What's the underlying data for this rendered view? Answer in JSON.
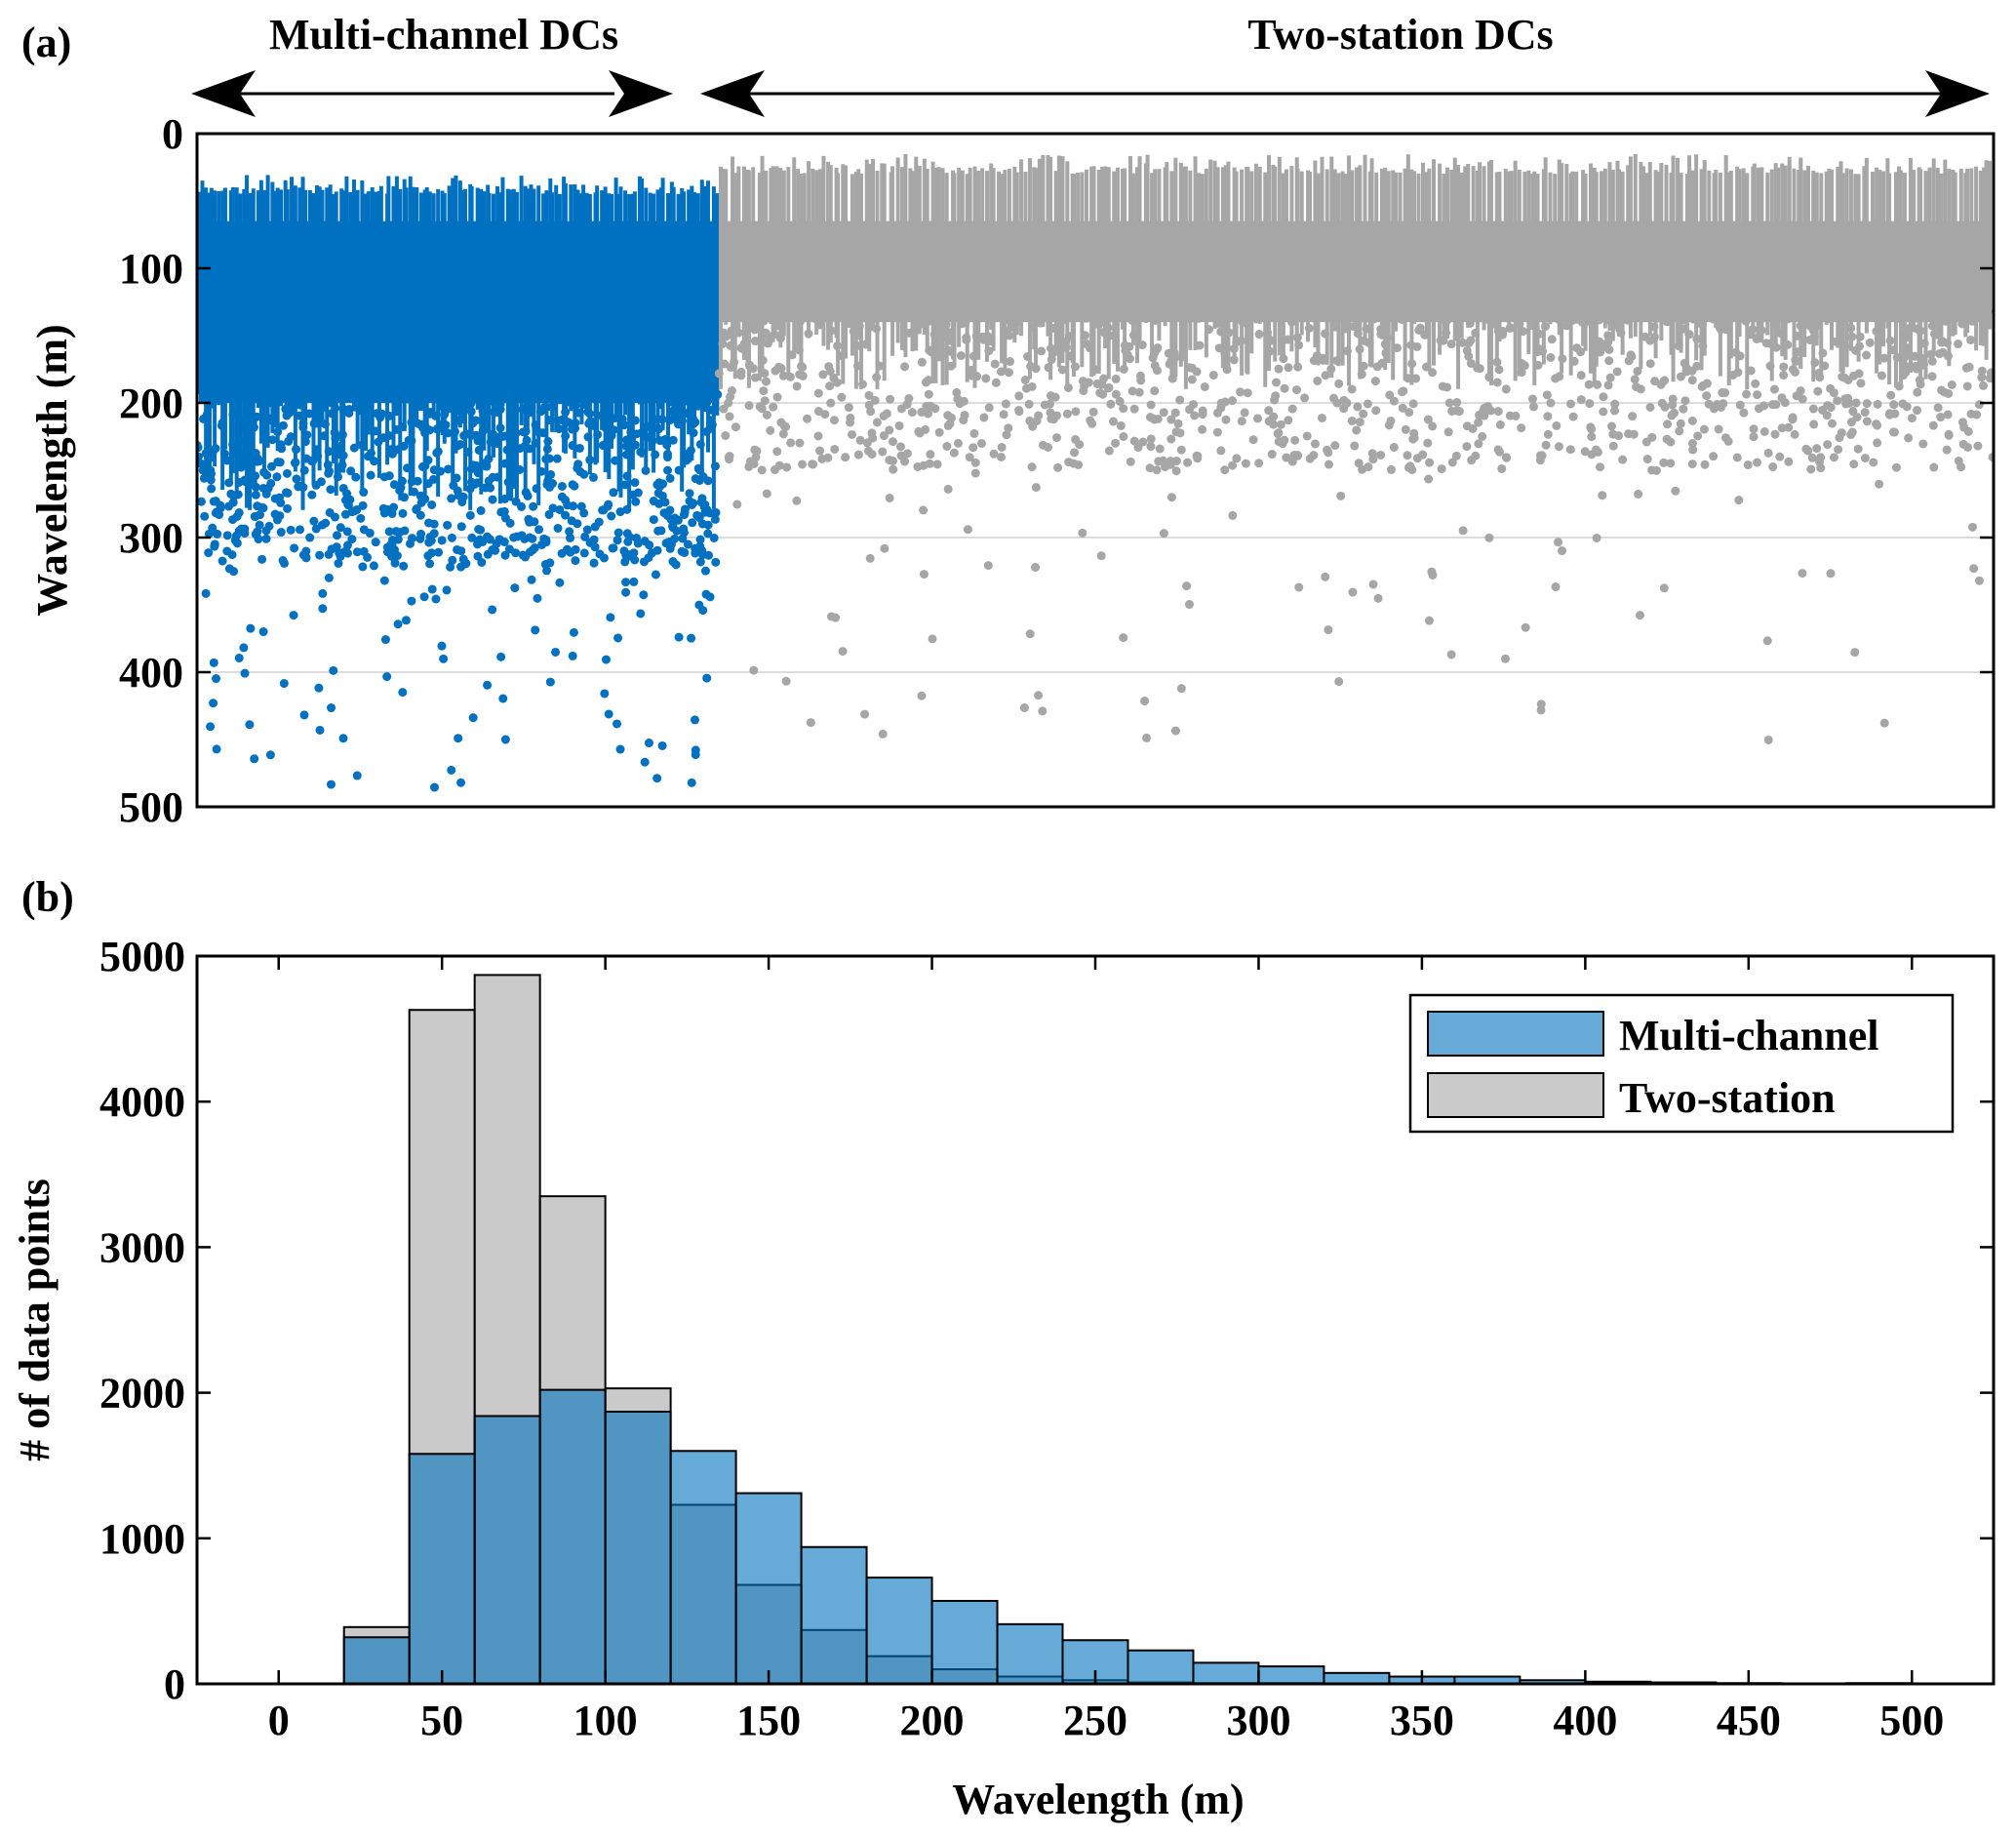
{
  "chart_data": [
    {
      "panel_label": "(a)",
      "type": "scatter",
      "title": "",
      "xlabel": "",
      "ylabel": "Wavelength (m)",
      "ylim": [
        0,
        500
      ],
      "y_reversed": true,
      "y_ticks": [
        0,
        100,
        200,
        300,
        400,
        500
      ],
      "y_grid": true,
      "x_tick_labels_visible": false,
      "annotations": [
        {
          "label": "Multi-channel DCs",
          "arrow": "double-headed",
          "spans_series": "Multi-channel"
        },
        {
          "label": "Two-station DCs",
          "arrow": "double-headed",
          "spans_series": "Two-station"
        }
      ],
      "series": [
        {
          "name": "Multi-channel",
          "color": "#0070C0",
          "index_range": [
            0,
            0.29
          ],
          "upper_envelope_m": [
            45,
            30
          ],
          "dense_band_m": [
            45,
            280
          ],
          "sparse_points_m": [
            300,
            495
          ],
          "max_wavelength_m": 495
        },
        {
          "name": "Two-station",
          "color": "#A6A6A6",
          "index_range": [
            0.29,
            1.0
          ],
          "upper_envelope_m": [
            30,
            15
          ],
          "dense_band_m": [
            45,
            190
          ],
          "sparse_points_m": [
            200,
            455
          ],
          "max_wavelength_m": 455
        }
      ]
    },
    {
      "panel_label": "(b)",
      "type": "bar",
      "subtype": "overlapping-histogram",
      "title": "",
      "xlabel": "Wavelength (m)",
      "ylabel": "# of data points",
      "xlim": [
        -25,
        525
      ],
      "ylim": [
        0,
        5000
      ],
      "x_ticks": [
        0,
        50,
        100,
        150,
        200,
        250,
        300,
        350,
        400,
        450,
        500
      ],
      "y_ticks": [
        0,
        1000,
        2000,
        3000,
        4000,
        5000
      ],
      "bin_width": 20,
      "bin_edges": [
        20,
        40,
        60,
        80,
        100,
        120,
        140,
        160,
        180,
        200,
        220,
        240,
        260,
        280,
        300,
        320,
        340,
        360,
        380,
        400,
        420,
        440,
        460,
        480,
        500
      ],
      "legend_position": "top-right",
      "series": [
        {
          "name": "Multi-channel",
          "color": "#0072BD",
          "opacity": 0.6,
          "values": [
            320,
            1580,
            1840,
            2020,
            1870,
            1600,
            1310,
            940,
            730,
            570,
            410,
            300,
            230,
            145,
            120,
            75,
            50,
            50,
            25,
            15,
            10,
            5,
            0,
            5
          ]
        },
        {
          "name": "Two-station",
          "color": "#A6A6A6",
          "opacity": 0.6,
          "values": [
            390,
            4630,
            4870,
            3350,
            2030,
            1230,
            680,
            370,
            190,
            100,
            50,
            25,
            10,
            5,
            5,
            0,
            0,
            0,
            0,
            0,
            0,
            0,
            0,
            0
          ]
        }
      ]
    }
  ]
}
